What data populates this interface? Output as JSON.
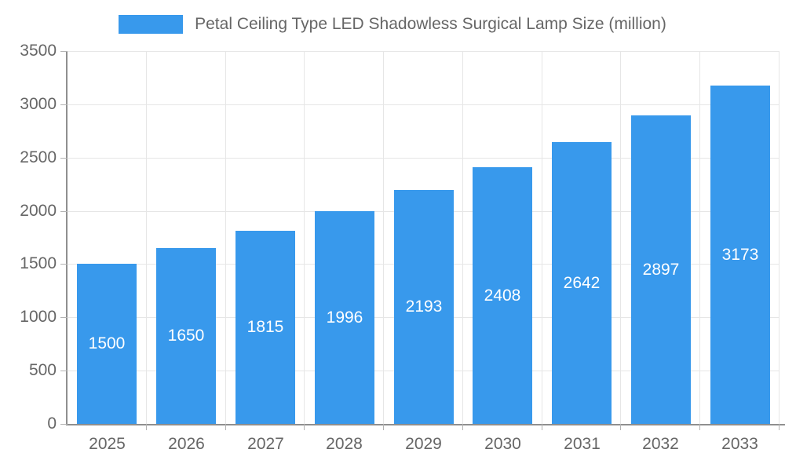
{
  "legend": {
    "label": "Petal Ceiling Type LED Shadowless Surgical Lamp Size (million)"
  },
  "chart_data": {
    "type": "bar",
    "title": "Petal Ceiling Type LED Shadowless Surgical Lamp Size (million)",
    "categories": [
      "2025",
      "2026",
      "2027",
      "2028",
      "2029",
      "2030",
      "2031",
      "2032",
      "2033"
    ],
    "values": [
      1500,
      1650,
      1815,
      1996,
      2193,
      2408,
      2642,
      2897,
      3173
    ],
    "series": [
      {
        "name": "Petal Ceiling Type LED Shadowless Surgical Lamp Size (million)",
        "values": [
          1500,
          1650,
          1815,
          1996,
          2193,
          2408,
          2642,
          2897,
          3173
        ]
      }
    ],
    "xlabel": "",
    "ylabel": "",
    "ylim": [
      0,
      3500
    ],
    "yticks": [
      0,
      500,
      1000,
      1500,
      2000,
      2500,
      3000,
      3500
    ],
    "grid": true,
    "legend_position": "top",
    "data_labels": "inside-center-white",
    "colors": {
      "bar": "#3899EC",
      "bar_label": "#FFFFFF",
      "axis_text": "#666666",
      "grid_line": "#E6E6E6",
      "tick_mark": "#B3B3B3",
      "axis_line": "#8F8F8F",
      "background": "#FFFFFF"
    }
  }
}
